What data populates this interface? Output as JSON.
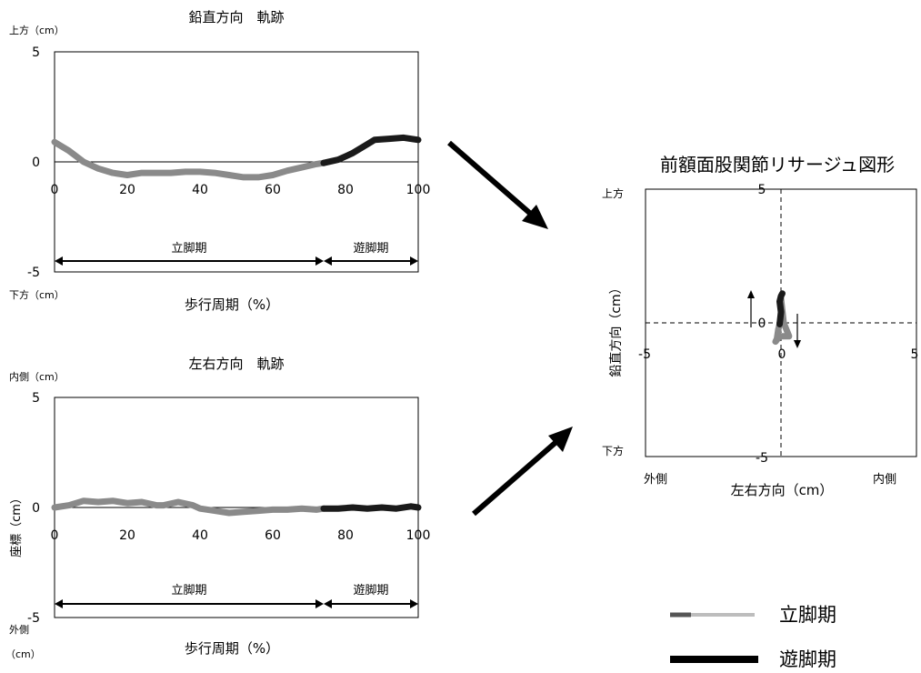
{
  "colors": {
    "stance": "#8a8a8a",
    "swing": "#1a1a1a",
    "ink": "#000000"
  },
  "chart_data": [
    {
      "type": "line",
      "title": "鉛直方向　軌跡",
      "xlabel": "歩行周期（%）",
      "top_label": "上方（cm）",
      "bottom_label": "下方（cm）",
      "xlim": [
        0,
        100
      ],
      "ylim": [
        -5,
        5
      ],
      "xticks": [
        "0",
        "20",
        "40",
        "60",
        "80",
        "100"
      ],
      "yticks": [
        "5",
        "0",
        "-5"
      ],
      "grid": false,
      "series": [
        {
          "name": "立脚期",
          "x": [
            0,
            4,
            8,
            12,
            16,
            20,
            24,
            28,
            32,
            36,
            40,
            44,
            48,
            52,
            56,
            60,
            64,
            68,
            72,
            74
          ],
          "y": [
            0.9,
            0.5,
            0.0,
            -0.3,
            -0.5,
            -0.6,
            -0.5,
            -0.5,
            -0.5,
            -0.45,
            -0.45,
            -0.5,
            -0.6,
            -0.7,
            -0.7,
            -0.6,
            -0.4,
            -0.25,
            -0.1,
            -0.05
          ]
        },
        {
          "name": "遊脚期",
          "x": [
            74,
            78,
            82,
            86,
            88,
            92,
            96,
            100
          ],
          "y": [
            -0.05,
            0.1,
            0.4,
            0.8,
            1.0,
            1.05,
            1.1,
            1.0
          ]
        }
      ],
      "phases": [
        {
          "label": "立脚期",
          "from": 0,
          "to": 74
        },
        {
          "label": "遊脚期",
          "from": 74,
          "to": 100
        }
      ]
    },
    {
      "type": "line",
      "title": "左右方向　軌跡",
      "xlabel": "歩行周期（%）",
      "ylabel": "座標（cm）",
      "top_label": "内側（cm）",
      "bottom_label": "外側",
      "bottom_unit": "（cm）",
      "xlim": [
        0,
        100
      ],
      "ylim": [
        -5,
        5
      ],
      "xticks": [
        "0",
        "20",
        "40",
        "60",
        "80",
        "100"
      ],
      "yticks": [
        "5",
        "0",
        "-5"
      ],
      "grid": false,
      "series": [
        {
          "name": "立脚期",
          "x": [
            0,
            4,
            8,
            12,
            16,
            20,
            24,
            28,
            30,
            34,
            38,
            40,
            44,
            48,
            52,
            56,
            60,
            64,
            68,
            72,
            74
          ],
          "y": [
            0.0,
            0.1,
            0.3,
            0.25,
            0.3,
            0.2,
            0.25,
            0.1,
            0.1,
            0.25,
            0.1,
            -0.05,
            -0.15,
            -0.25,
            -0.2,
            -0.15,
            -0.1,
            -0.1,
            -0.05,
            -0.1,
            -0.05
          ]
        },
        {
          "name": "遊脚期",
          "x": [
            74,
            78,
            82,
            86,
            90,
            94,
            98,
            100
          ],
          "y": [
            -0.05,
            -0.05,
            0.0,
            -0.05,
            0.0,
            -0.05,
            0.05,
            0.0
          ]
        }
      ],
      "phases": [
        {
          "label": "立脚期",
          "from": 0,
          "to": 74
        },
        {
          "label": "遊脚期",
          "from": 74,
          "to": 100
        }
      ]
    },
    {
      "type": "scatter",
      "title": "前額面股関節リサージュ図形",
      "xlabel": "左右方向（cm）",
      "ylabel": "鉛直方向（cm）",
      "top_label": "上方",
      "bottom_label": "下方",
      "left_label": "外側",
      "right_label": "内側",
      "xlim": [
        -5,
        5
      ],
      "ylim": [
        -5,
        5
      ],
      "xticks": [
        "-5",
        "0",
        "5"
      ],
      "yticks": [
        "5",
        "0",
        "-5"
      ],
      "series": [
        {
          "name": "立脚期",
          "x": [
            0.0,
            0.1,
            0.3,
            0.25,
            0.2,
            0.1,
            -0.05,
            -0.2,
            -0.15,
            -0.1,
            -0.05
          ],
          "y": [
            0.9,
            0.0,
            -0.5,
            -0.5,
            -0.5,
            -0.5,
            -0.5,
            -0.7,
            -0.6,
            -0.25,
            -0.05
          ]
        },
        {
          "name": "遊脚期",
          "x": [
            -0.05,
            0.0,
            -0.05,
            0.0,
            0.05,
            0.0
          ],
          "y": [
            -0.05,
            0.4,
            0.8,
            1.0,
            1.1,
            1.0
          ]
        }
      ]
    }
  ],
  "legend": [
    {
      "label": "立脚期"
    },
    {
      "label": "遊脚期"
    }
  ]
}
